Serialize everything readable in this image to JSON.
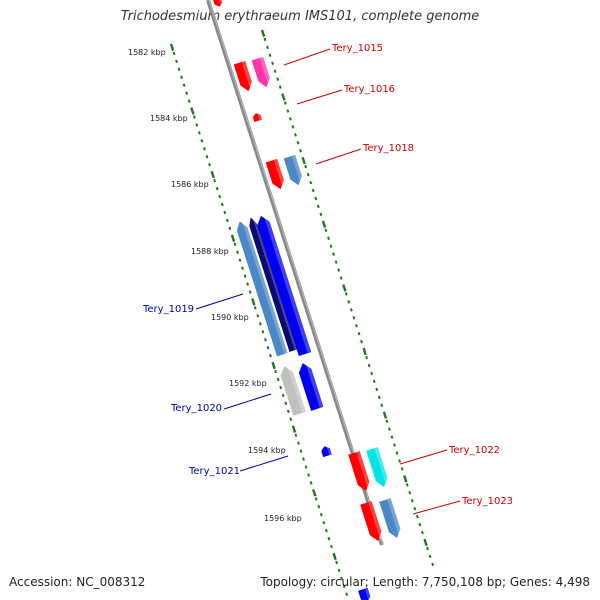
{
  "title": "Trichodesmium erythraeum IMS101, complete genome",
  "footer": {
    "accession": "Accession: NC_008312",
    "summary": "Topology: circular; Length: 7,750,108 bp; Genes: 4,498"
  },
  "colors": {
    "backbone": "#888888",
    "tick": "#1a7a1a",
    "label_forward": "#cc0000",
    "label_reverse": "#0000aa"
  },
  "ticks": [
    "1582 kbp",
    "1584 kbp",
    "1586 kbp",
    "1588 kbp",
    "1590 kbp",
    "1592 kbp",
    "1594 kbp",
    "1596 kbp"
  ],
  "gene_labels": [
    {
      "text": "Tery_1015",
      "color": "#cc0000"
    },
    {
      "text": "Tery_1016",
      "color": "#cc0000"
    },
    {
      "text": "Tery_1018",
      "color": "#cc0000"
    },
    {
      "text": "Tery_1019",
      "color": "#0000aa"
    },
    {
      "text": "Tery_1020",
      "color": "#0000aa"
    },
    {
      "text": "Tery_1021",
      "color": "#0000aa"
    },
    {
      "text": "Tery_1022",
      "color": "#cc0000"
    },
    {
      "text": "Tery_1023",
      "color": "#cc0000"
    }
  ],
  "features": [
    {
      "name": "red",
      "color": "#ff0000"
    },
    {
      "name": "magenta",
      "color": "#ff33aa"
    },
    {
      "name": "steelblue",
      "color": "#4a88c8"
    },
    {
      "name": "navy",
      "color": "#0a0a70"
    },
    {
      "name": "blue",
      "color": "#0000ee"
    },
    {
      "name": "gray",
      "color": "#c0c0c0"
    },
    {
      "name": "cyan",
      "color": "#00e5e5"
    }
  ]
}
